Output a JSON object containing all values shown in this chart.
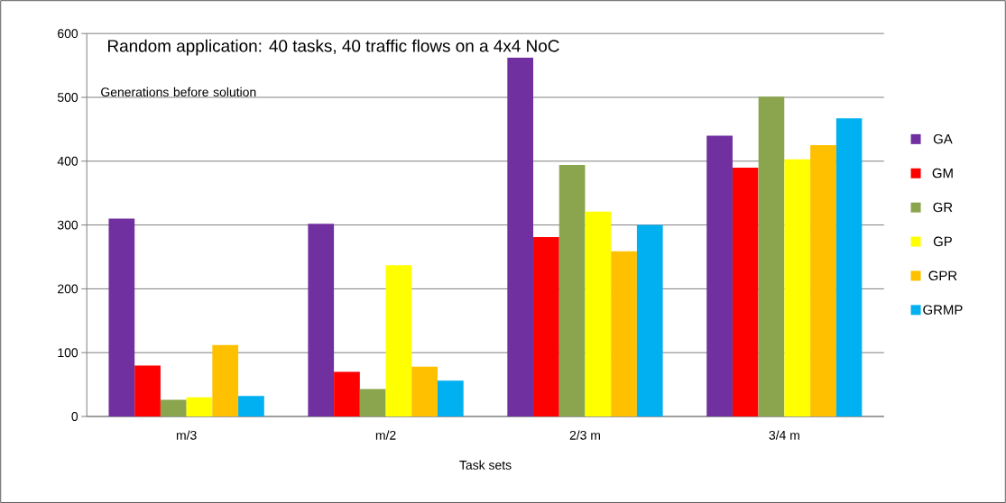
{
  "chart_data": {
    "type": "bar",
    "title": "Random application: 40 tasks, 40 traffic flows on a 4x4 NoC",
    "xlabel": "Task sets",
    "annotations": [
      "Generations before solution"
    ],
    "categories": [
      "m/3",
      "m/2",
      "2/3 m",
      "3/4 m"
    ],
    "series": [
      {
        "name": "GA",
        "color": "#7030a0",
        "values": [
          310,
          302,
          562,
          440
        ]
      },
      {
        "name": "GM",
        "color": "#ff0000",
        "values": [
          80,
          70,
          281,
          390
        ]
      },
      {
        "name": "GR",
        "color": "#8ba54e",
        "values": [
          26,
          43,
          394,
          501
        ]
      },
      {
        "name": "GP",
        "color": "#ffff00",
        "values": [
          30,
          237,
          321,
          403
        ]
      },
      {
        "name": "GPR",
        "color": "#ffc000",
        "values": [
          112,
          78,
          259,
          425
        ]
      },
      {
        "name": "GRMP",
        "color": "#00b0f0",
        "values": [
          32,
          56,
          300,
          467
        ]
      }
    ],
    "ylim": [
      0,
      600
    ],
    "yticks": [
      0,
      100,
      200,
      300,
      400,
      500,
      600
    ],
    "grid": "y",
    "legend": "right"
  }
}
